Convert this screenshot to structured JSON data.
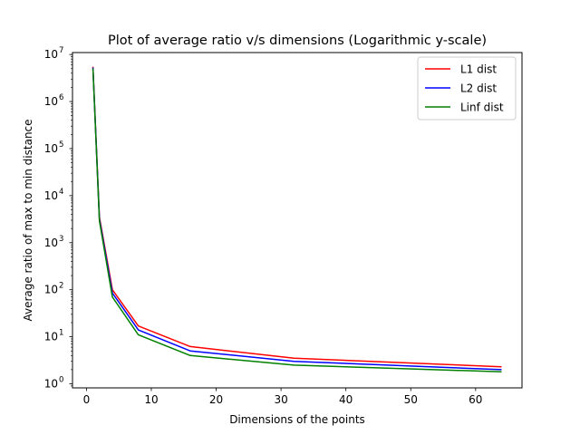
{
  "chart_data": {
    "type": "line",
    "title": "Plot of average ratio v/s dimensions (Logarithmic y-scale)",
    "xlabel": "Dimensions of the points",
    "ylabel": "Average ratio of max to min distance",
    "yscale": "log",
    "xlim": [
      -2.15,
      67.15
    ],
    "ylim": [
      0.82,
      11000000
    ],
    "x_ticks": [
      0,
      10,
      20,
      30,
      40,
      50,
      60
    ],
    "y_ticks": [
      {
        "value": 1,
        "base": "10",
        "exp": "0"
      },
      {
        "value": 10,
        "base": "10",
        "exp": "1"
      },
      {
        "value": 100,
        "base": "10",
        "exp": "2"
      },
      {
        "value": 1000,
        "base": "10",
        "exp": "3"
      },
      {
        "value": 10000,
        "base": "10",
        "exp": "4"
      },
      {
        "value": 100000,
        "base": "10",
        "exp": "5"
      },
      {
        "value": 1000000,
        "base": "10",
        "exp": "6"
      },
      {
        "value": 10000000,
        "base": "10",
        "exp": "7"
      }
    ],
    "grid": false,
    "legend_position": "top-right",
    "x": [
      1,
      2,
      4,
      8,
      16,
      32,
      64
    ],
    "series": [
      {
        "name": "L1 dist",
        "color": "#ff0000",
        "values": [
          5500000,
          3500,
          100,
          17,
          6.2,
          3.5,
          2.3
        ]
      },
      {
        "name": "L2 dist",
        "color": "#0000ff",
        "values": [
          5300000,
          3200,
          85,
          14,
          5.0,
          3.0,
          2.0
        ]
      },
      {
        "name": "Linf dist",
        "color": "#008000",
        "values": [
          5100000,
          2900,
          70,
          11,
          4.0,
          2.5,
          1.8
        ]
      }
    ]
  }
}
